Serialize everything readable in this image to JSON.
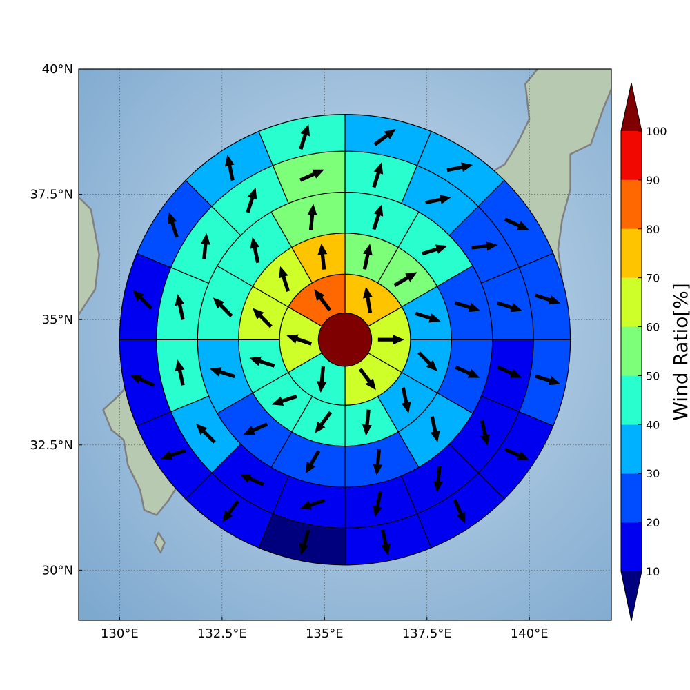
{
  "chart_data": {
    "type": "map",
    "xlim": [
      129,
      142
    ],
    "ylim": [
      29,
      40
    ],
    "x_ticks": [
      {
        "value": 130,
        "label": "130°E"
      },
      {
        "value": 132.5,
        "label": "132.5°E"
      },
      {
        "value": 135,
        "label": "135°E"
      },
      {
        "value": 137.5,
        "label": "137.5°E"
      },
      {
        "value": 140,
        "label": "140°E"
      }
    ],
    "y_ticks": [
      {
        "value": 30,
        "label": "30°N"
      },
      {
        "value": 32.5,
        "label": "32.5°N"
      },
      {
        "value": 35,
        "label": "35°N"
      },
      {
        "value": 37.5,
        "label": "37.5°N"
      },
      {
        "value": 40,
        "label": "40°N"
      }
    ],
    "grid": true,
    "center": {
      "lon": 135.5,
      "lat": 34.6,
      "value": 100
    },
    "ring_radii_deg": [
      0.65,
      1.6,
      2.6,
      3.6,
      4.6,
      5.5
    ],
    "sector_start_bearing_deg": 0,
    "sector_direction": "clockwise",
    "sector_count_per_ring": [
      6,
      12,
      12,
      16,
      16
    ],
    "rings": [
      {
        "values": [
          75,
          65,
          65,
          45,
          65,
          85
        ],
        "winds": [
          [
            -0.15,
            0.9
          ],
          [
            1,
            0
          ],
          [
            0.6,
            -0.8
          ],
          [
            -0.1,
            -1
          ],
          [
            -0.9,
            0.3
          ],
          [
            -0.6,
            0.8
          ]
        ]
      },
      {
        "values": [
          55,
          55,
          35,
          35,
          35,
          45,
          45,
          45,
          45,
          60,
          65,
          75
        ],
        "winds": [
          [
            0.2,
            0.95
          ],
          [
            0.85,
            0.5
          ],
          [
            0.95,
            -0.3
          ],
          [
            0.7,
            -0.7
          ],
          [
            0.2,
            -0.95
          ],
          [
            -0.1,
            -1
          ],
          [
            -0.6,
            -0.8
          ],
          [
            -0.9,
            -0.3
          ],
          [
            -0.95,
            0.3
          ],
          [
            -0.7,
            0.7
          ],
          [
            -0.3,
            0.95
          ],
          [
            -0.1,
            0.95
          ]
        ]
      },
      {
        "values": [
          45,
          45,
          25,
          25,
          35,
          25,
          25,
          25,
          35,
          45,
          45,
          55
        ],
        "winds": [
          [
            0.3,
            0.95
          ],
          [
            0.95,
            0.3
          ],
          [
            0.95,
            -0.3
          ],
          [
            0.9,
            -0.4
          ],
          [
            0.2,
            -0.95
          ],
          [
            -0.1,
            -1
          ],
          [
            -0.5,
            -0.85
          ],
          [
            -0.9,
            -0.4
          ],
          [
            -0.95,
            0.3
          ],
          [
            -0.7,
            0.7
          ],
          [
            -0.2,
            0.95
          ],
          [
            0.1,
            1
          ]
        ]
      },
      {
        "values": [
          45,
          35,
          25,
          25,
          15,
          15,
          15,
          15,
          15,
          15,
          35,
          45,
          45,
          45,
          45,
          55
        ],
        "winds": [
          [
            0.3,
            0.95
          ],
          [
            0.95,
            0.2
          ],
          [
            0.95,
            0.1
          ],
          [
            0.95,
            -0.3
          ],
          [
            0.9,
            -0.4
          ],
          [
            0.2,
            -0.95
          ],
          [
            -0.1,
            -1
          ],
          [
            -0.2,
            -0.95
          ],
          [
            -0.9,
            -0.3
          ],
          [
            -0.9,
            0.4
          ],
          [
            -0.7,
            0.7
          ],
          [
            -0.2,
            0.95
          ],
          [
            -0.2,
            0.95
          ],
          [
            0.1,
            1
          ],
          [
            0.3,
            0.95
          ],
          [
            0.9,
            0.4
          ]
        ]
      },
      {
        "values": [
          35,
          35,
          25,
          25,
          25,
          15,
          15,
          15,
          5,
          15,
          15,
          15,
          15,
          25,
          35,
          45
        ],
        "winds": [
          [
            0.8,
            0.6
          ],
          [
            0.95,
            0.2
          ],
          [
            0.9,
            -0.4
          ],
          [
            0.95,
            -0.3
          ],
          [
            0.95,
            -0.3
          ],
          [
            0.9,
            -0.4
          ],
          [
            0.4,
            -0.9
          ],
          [
            0.2,
            -0.95
          ],
          [
            -0.3,
            -0.95
          ],
          [
            -0.6,
            -0.8
          ],
          [
            -0.9,
            -0.3
          ],
          [
            -0.9,
            0.4
          ],
          [
            -0.7,
            0.7
          ],
          [
            -0.3,
            0.95
          ],
          [
            -0.2,
            0.95
          ],
          [
            0.3,
            0.95
          ]
        ]
      }
    ],
    "colorbar": {
      "title": "Wind Ratio[%]",
      "ticks": [
        10,
        20,
        30,
        40,
        50,
        60,
        70,
        80,
        90,
        100
      ],
      "bounds": [
        0,
        10,
        20,
        30,
        40,
        50,
        60,
        70,
        80,
        90,
        100,
        110
      ],
      "colors": [
        "#00007f",
        "#0000f1",
        "#004dff",
        "#00b1ff",
        "#29ffce",
        "#7dff7a",
        "#ceff29",
        "#ffc400",
        "#ff6800",
        "#f10800",
        "#7f0000"
      ],
      "extend": "both"
    },
    "style": {
      "coastline_color": "#808080",
      "land_color": "#b7c9b0",
      "sea_color": "#93b7d6",
      "sector_edge_color": "#000000",
      "arrow_color": "#000000"
    }
  }
}
